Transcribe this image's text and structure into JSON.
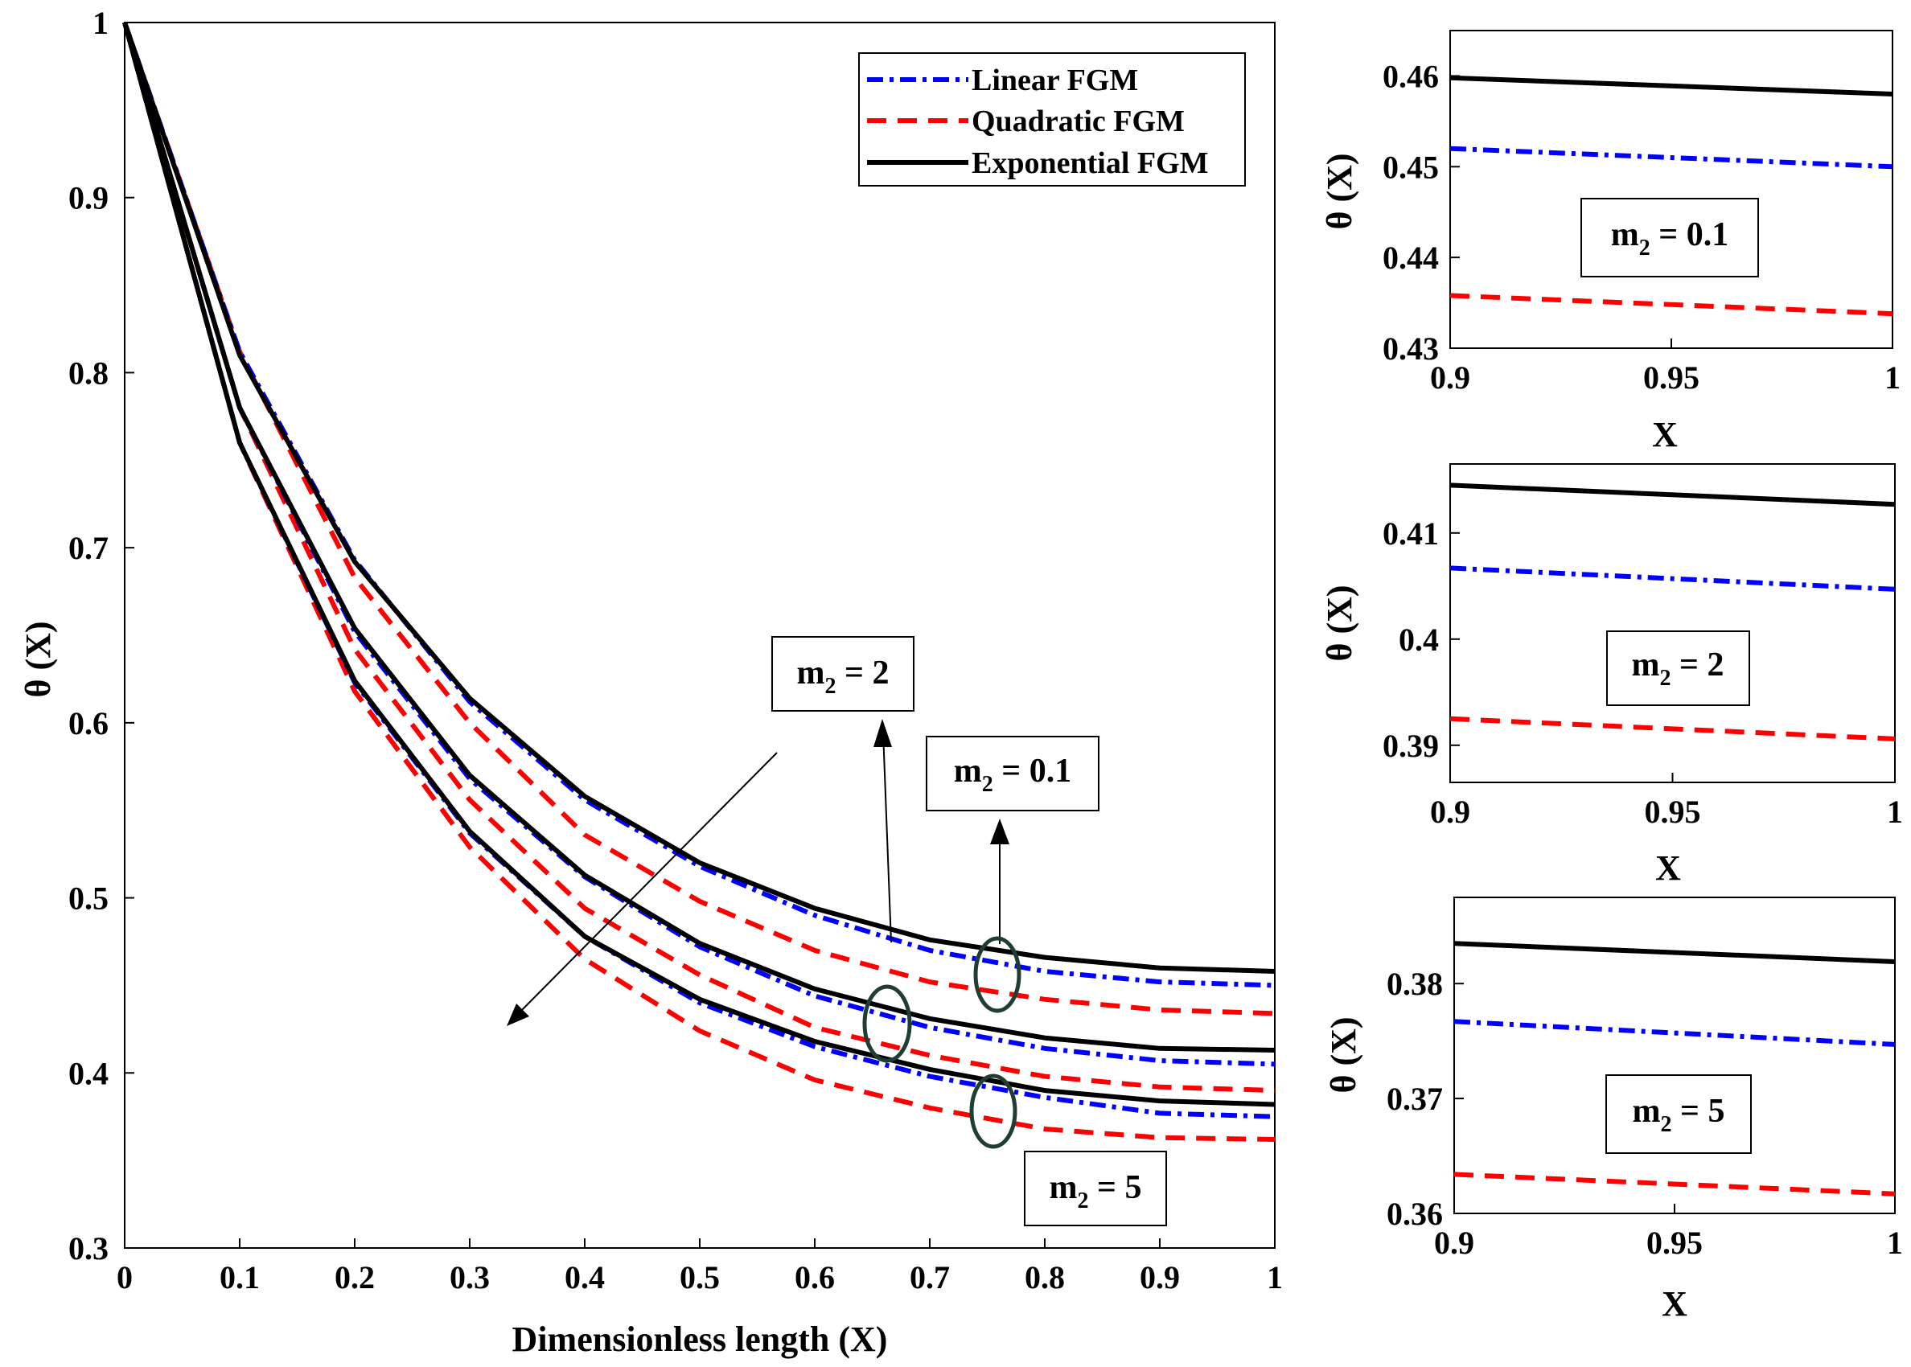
{
  "chart_data": [
    {
      "type": "line",
      "id": "main",
      "xlabel": "Dimensionless length (X)",
      "ylabel": "θ (X)",
      "xlim": [
        0,
        1
      ],
      "ylim": [
        0.3,
        1
      ],
      "xticks": [
        "0",
        "0.1",
        "0.2",
        "0.3",
        "0.4",
        "0.5",
        "0.6",
        "0.7",
        "0.8",
        "0.9",
        "1"
      ],
      "yticks": [
        "0.3",
        "0.4",
        "0.5",
        "0.6",
        "0.7",
        "0.8",
        "0.9",
        "1"
      ],
      "legend": {
        "position": "top-right",
        "entries": [
          "Linear FGM",
          "Quadratic FGM",
          "Exponential FGM"
        ]
      },
      "x": [
        0,
        0.1,
        0.2,
        0.3,
        0.4,
        0.5,
        0.6,
        0.7,
        0.8,
        0.9,
        1.0
      ],
      "series": [
        {
          "name": "Linear FGM",
          "group": "m2 = 0.1",
          "values": [
            1,
            0.812,
            0.693,
            0.612,
            0.556,
            0.518,
            0.49,
            0.47,
            0.458,
            0.452,
            0.45
          ]
        },
        {
          "name": "Quadratic FGM",
          "group": "m2 = 0.1",
          "values": [
            1,
            0.812,
            0.683,
            0.6,
            0.536,
            0.498,
            0.47,
            0.452,
            0.442,
            0.436,
            0.434
          ]
        },
        {
          "name": "Exponential FGM",
          "group": "m2 = 0.1",
          "values": [
            1,
            0.81,
            0.692,
            0.614,
            0.558,
            0.52,
            0.494,
            0.476,
            0.466,
            0.46,
            0.458
          ]
        },
        {
          "name": "Linear FGM",
          "group": "m2 = 2",
          "values": [
            1,
            0.78,
            0.652,
            0.568,
            0.512,
            0.472,
            0.444,
            0.426,
            0.414,
            0.407,
            0.405
          ]
        },
        {
          "name": "Quadratic FGM",
          "group": "m2 = 2",
          "values": [
            1,
            0.78,
            0.642,
            0.556,
            0.494,
            0.456,
            0.426,
            0.41,
            0.398,
            0.392,
            0.39
          ]
        },
        {
          "name": "Exponential FGM",
          "group": "m2 = 2",
          "values": [
            1,
            0.78,
            0.654,
            0.57,
            0.513,
            0.474,
            0.448,
            0.431,
            0.42,
            0.414,
            0.413
          ]
        },
        {
          "name": "Linear FGM",
          "group": "m2 = 5",
          "values": [
            1,
            0.76,
            0.623,
            0.537,
            0.478,
            0.44,
            0.415,
            0.398,
            0.386,
            0.377,
            0.375
          ]
        },
        {
          "name": "Quadratic FGM",
          "group": "m2 = 5",
          "values": [
            1,
            0.76,
            0.618,
            0.529,
            0.465,
            0.424,
            0.396,
            0.38,
            0.368,
            0.363,
            0.362
          ]
        },
        {
          "name": "Exponential FGM",
          "group": "m2 = 5",
          "values": [
            1,
            0.76,
            0.624,
            0.538,
            0.478,
            0.442,
            0.418,
            0.402,
            0.39,
            0.384,
            0.382
          ]
        }
      ],
      "annotations": [
        {
          "text": "m2 = 2",
          "label_main": "m",
          "label_sub": "2",
          "label_rest": " = 2"
        },
        {
          "text": "m2 = 0.1",
          "label_main": "m",
          "label_sub": "2",
          "label_rest": " = 0.1"
        },
        {
          "text": "m2 = 5",
          "label_main": "m",
          "label_sub": "2",
          "label_rest": " = 5"
        }
      ]
    },
    {
      "type": "line",
      "id": "inset-m01",
      "xlabel": "X",
      "ylabel": "θ (X)",
      "xlim": [
        0.9,
        1
      ],
      "ylim": [
        0.43,
        0.465
      ],
      "xticks": [
        "0.9",
        "0.95",
        "1"
      ],
      "yticks": [
        "0.43",
        "0.44",
        "0.45",
        "0.46"
      ],
      "annotation": {
        "label_main": "m",
        "label_sub": "2",
        "label_rest": " = 0.1"
      },
      "x": [
        0.9,
        1.0
      ],
      "series": [
        {
          "name": "Exponential FGM",
          "values": [
            0.4598,
            0.458
          ]
        },
        {
          "name": "Linear FGM",
          "values": [
            0.452,
            0.45
          ]
        },
        {
          "name": "Quadratic FGM",
          "values": [
            0.4358,
            0.4338
          ]
        }
      ]
    },
    {
      "type": "line",
      "id": "inset-m2",
      "xlabel": "X",
      "ylabel": "θ (X)",
      "xlim": [
        0.9,
        1
      ],
      "ylim": [
        0.3865,
        0.4165
      ],
      "xticks": [
        "0.9",
        "0.95",
        "1"
      ],
      "yticks": [
        "0.39",
        "0.4",
        "0.41"
      ],
      "annotation": {
        "label_main": "m",
        "label_sub": "2",
        "label_rest": " = 2"
      },
      "x": [
        0.9,
        1.0
      ],
      "series": [
        {
          "name": "Exponential FGM",
          "values": [
            0.4145,
            0.4127
          ]
        },
        {
          "name": "Linear FGM",
          "values": [
            0.4067,
            0.4047
          ]
        },
        {
          "name": "Quadratic FGM",
          "values": [
            0.3925,
            0.3906
          ]
        }
      ]
    },
    {
      "type": "line",
      "id": "inset-m5",
      "xlabel": "X",
      "ylabel": "θ (X)",
      "xlim": [
        0.9,
        1
      ],
      "ylim": [
        0.36,
        0.3875
      ],
      "xticks": [
        "0.9",
        "0.95",
        "1"
      ],
      "yticks": [
        "0.36",
        "0.37",
        "0.38"
      ],
      "annotation": {
        "label_main": "m",
        "label_sub": "2",
        "label_rest": " = 5"
      },
      "x": [
        0.9,
        1.0
      ],
      "series": [
        {
          "name": "Exponential FGM",
          "values": [
            0.3835,
            0.3819
          ]
        },
        {
          "name": "Linear FGM",
          "values": [
            0.3767,
            0.3747
          ]
        },
        {
          "name": "Quadratic FGM",
          "values": [
            0.3634,
            0.3617
          ]
        }
      ]
    }
  ],
  "styles": {
    "Linear FGM": {
      "color": "#0000ff",
      "dash": "20 8 5 8"
    },
    "Quadratic FGM": {
      "color": "#ff0000",
      "dash": "24 14"
    },
    "Exponential FGM": {
      "color": "#000000",
      "dash": ""
    },
    "ellipse_color": "#1f3d33"
  }
}
